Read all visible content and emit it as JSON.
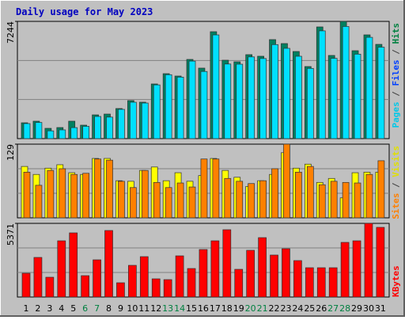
{
  "chart_data": [
    {
      "type": "bar",
      "title": "Daily usage for May 2023",
      "ylim": [
        0,
        7244
      ],
      "yticks": [
        7244
      ],
      "legend": [
        {
          "text": "Pages",
          "color": "#00c8e8"
        },
        {
          "text": " / ",
          "color": "#404040"
        },
        {
          "text": "Files",
          "color": "#0040ff"
        },
        {
          "text": " / ",
          "color": "#404040"
        },
        {
          "text": "Hits",
          "color": "#008040"
        }
      ],
      "series": [
        {
          "color": "#008060",
          "values": [
            979,
            1077,
            636,
            685,
            1077,
            832,
            1468,
            1517,
            1860,
            2350,
            2252,
            3378,
            4014,
            3867,
            4895,
            4357,
            6608,
            4846,
            4748,
            5189,
            5091,
            6119,
            5874,
            5384,
            4454,
            6902,
            5140,
            7244,
            5433,
            6412,
            5825
          ]
        },
        {
          "color": "#00e0ff",
          "values": [
            930,
            1000,
            480,
            540,
            680,
            760,
            1370,
            1330,
            1810,
            2250,
            2200,
            3320,
            3950,
            3800,
            4790,
            4150,
            6410,
            4610,
            4600,
            5050,
            4950,
            5810,
            5580,
            5090,
            4340,
            6660,
            4960,
            6930,
            5220,
            6260,
            5650
          ]
        }
      ]
    },
    {
      "type": "bar",
      "ylim": [
        0,
        129
      ],
      "yticks": [
        129
      ],
      "legend": [
        {
          "text": "Sites",
          "color": "#ff8000"
        },
        {
          "text": " / ",
          "color": "#404040"
        },
        {
          "text": "Visits",
          "color": "#e0e000"
        }
      ],
      "series": [
        {
          "color": "#ffff00",
          "values": [
            90,
            76,
            87,
            93,
            79,
            76,
            104,
            104,
            65,
            64,
            83,
            89,
            65,
            79,
            64,
            74,
            104,
            83,
            71,
            55,
            65,
            76,
            114,
            87,
            94,
            62,
            69,
            35,
            79,
            80,
            80
          ]
        },
        {
          "color": "#ff8000",
          "values": [
            80,
            57,
            83,
            86,
            76,
            78,
            103,
            101,
            64,
            53,
            83,
            62,
            53,
            61,
            54,
            103,
            103,
            69,
            64,
            60,
            65,
            86,
            129,
            80,
            90,
            58,
            64,
            62,
            61,
            76,
            100
          ]
        }
      ]
    },
    {
      "type": "bar",
      "ylim": [
        0,
        5371
      ],
      "yticks": [
        5371
      ],
      "legend": [
        {
          "text": "KBytes",
          "color": "#ff0000"
        }
      ],
      "categories": [
        "1",
        "2",
        "3",
        "4",
        "5",
        "6",
        "7",
        "8",
        "9",
        "10",
        "11",
        "12",
        "13",
        "14",
        "15",
        "16",
        "17",
        "18",
        "19",
        "20",
        "21",
        "22",
        "23",
        "24",
        "25",
        "26",
        "27",
        "28",
        "29",
        "30",
        "31"
      ],
      "category_colors": [
        "#000000",
        "#000000",
        "#000000",
        "#000000",
        "#000000",
        "#008040",
        "#008040",
        "#000000",
        "#000000",
        "#000000",
        "#000000",
        "#000000",
        "#008040",
        "#008040",
        "#000000",
        "#000000",
        "#000000",
        "#000000",
        "#000000",
        "#008040",
        "#008040",
        "#000000",
        "#000000",
        "#000000",
        "#000000",
        "#000000",
        "#008040",
        "#008040",
        "#000000",
        "#000000",
        "#000000"
      ],
      "series": [
        {
          "color": "#ff0000",
          "values": [
            1733,
            2888,
            1444,
            4100,
            4678,
            1559,
            2714,
            4851,
            1040,
            2310,
            2945,
            1328,
            1271,
            3003,
            2079,
            3465,
            4100,
            4909,
            2021,
            3407,
            4331,
            3061,
            3523,
            2657,
            2137,
            2137,
            2137,
            3985,
            4100,
            5371,
            5082
          ]
        }
      ]
    }
  ]
}
